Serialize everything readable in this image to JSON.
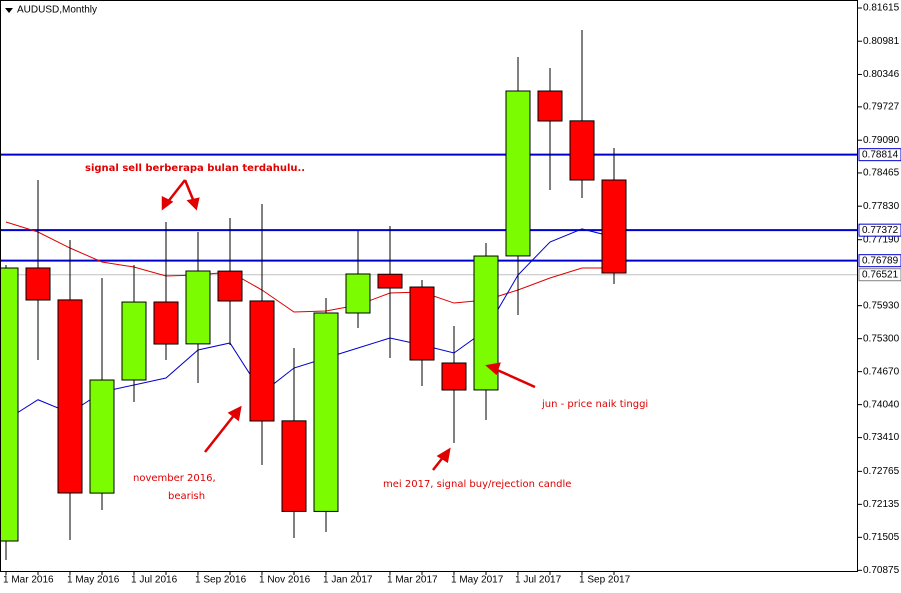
{
  "chart_data": {
    "type": "candlestick",
    "title": "AUDUSD,Monthly",
    "categories": [
      "1 Mar 2016",
      null,
      "1 May 2016",
      null,
      "1 Jul 2016",
      null,
      "1 Sep 2016",
      null,
      "1 Nov 2016",
      null,
      "1 Jan 2017",
      null,
      "1 Mar 2017",
      null,
      "1 May 2017",
      null,
      "1 Jul 2017",
      null,
      "1 Sep 2017",
      null
    ],
    "open": [
      0.71435,
      0.7665,
      0.7604,
      0.7235,
      0.7451,
      0.76,
      0.752,
      0.7659,
      0.7602,
      0.7373,
      0.72,
      0.7579,
      0.7653,
      0.76286,
      0.74835,
      0.7432,
      0.7688,
      0.8003,
      0.7946,
      0.7833
    ],
    "high": [
      0.76706,
      0.7833,
      0.77184,
      0.76458,
      0.76706,
      0.77528,
      0.77337,
      0.77604,
      0.77872,
      0.75121,
      0.76076,
      0.77356,
      0.77452,
      0.7642,
      0.75541,
      0.77127,
      0.80679,
      0.80469,
      0.81195,
      0.78941
    ],
    "low": [
      0.71072,
      0.74892,
      0.71454,
      0.72027,
      0.7409,
      0.74892,
      0.74453,
      0.75178,
      0.72886,
      0.71492,
      0.71607,
      0.75503,
      0.7493,
      0.74395,
      0.73307,
      0.73746,
      0.75752,
      0.78139,
      0.77986,
      0.76343
    ],
    "close": [
      0.76649,
      0.76038,
      0.72352,
      0.7451,
      0.75999,
      0.75197,
      0.76592,
      0.76019,
      0.73727,
      0.72,
      0.7579,
      0.76535,
      0.76267,
      0.74892,
      0.74319,
      0.76878,
      0.8003,
      0.79457,
      0.7833,
      0.76554
    ],
    "up_color": "#7cfc00",
    "down_color": "#ff0000",
    "series": [
      {
        "color": "#e00000",
        "values": [
          0.77528,
          0.77337,
          0.77031,
          0.76764,
          0.76668,
          0.76496,
          0.76515,
          0.76573,
          0.76229,
          0.75809,
          0.75828,
          0.75942,
          0.76172,
          0.76191,
          0.7598,
          0.76038,
          0.76229,
          0.76458,
          0.76649,
          0.76649
        ]
      },
      {
        "color": "#0000cd",
        "values": [
          0.73746,
          0.74133,
          0.7388,
          0.74281,
          0.74415,
          0.74548,
          0.75083,
          0.75217,
          0.74262,
          0.74739,
          0.7493,
          0.75121,
          0.75312,
          0.75178,
          0.75026,
          0.75465,
          0.76515,
          0.77146,
          0.77395,
          0.77242
        ]
      }
    ],
    "hlines": [
      {
        "value": 0.78814,
        "color": "#0000cd"
      },
      {
        "value": 0.77372,
        "color": "#0000cd"
      },
      {
        "value": 0.76789,
        "color": "#0000cd"
      },
      {
        "value": 0.76521,
        "color": "#c0c0c0"
      }
    ],
    "ylim": [
      0.70862,
      0.81749
    ],
    "yticks": [
      0.81615,
      0.80981,
      0.80346,
      0.79727,
      {
        "value": 0.7909,
        "label": "0.79090"
      },
      0.78465,
      {
        "value": 0.7783,
        "label": "0.77830"
      },
      {
        "value": 0.7719,
        "label": "0.77190"
      },
      {
        "value": 0.7593,
        "label": "0.75930"
      },
      {
        "value": 0.753,
        "label": "0.75300"
      },
      {
        "value": 0.7467,
        "label": "0.74670"
      },
      {
        "value": 0.7404,
        "label": "0.74040"
      },
      {
        "value": 0.7341,
        "label": "0.73410"
      },
      0.72765,
      0.72135,
      0.71505,
      0.70875
    ],
    "annotations": [
      "signal sell berberapa bulan terdahulu..",
      "november 2016,",
      "bearish",
      "mei 2017, signal buy/rejection candle",
      "jun - price naik tinggi"
    ]
  }
}
